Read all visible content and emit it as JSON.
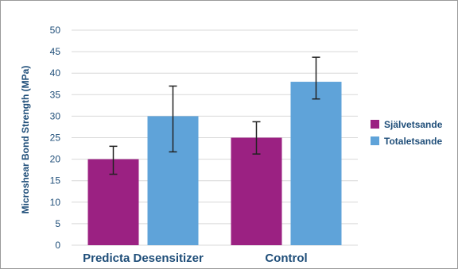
{
  "chart_data": {
    "type": "bar",
    "title": "",
    "xlabel": "",
    "ylabel": "Microshear Bond Strength (MPa)",
    "ylim": [
      0,
      50
    ],
    "yticks": [
      0,
      5,
      10,
      15,
      20,
      25,
      30,
      35,
      40,
      45,
      50
    ],
    "grid": true,
    "legend_position": "right",
    "categories": [
      "Predicta Desensitizer",
      "Control"
    ],
    "series": [
      {
        "name": "Självetsande",
        "color": "#9b2182",
        "values": [
          20,
          25
        ],
        "error_low": [
          16.5,
          21.2
        ],
        "error_high": [
          23,
          28.7
        ]
      },
      {
        "name": "Totaletsande",
        "color": "#5fa3d9",
        "values": [
          30,
          38
        ],
        "error_low": [
          21.7,
          34
        ],
        "error_high": [
          37,
          43.7
        ]
      }
    ],
    "colors": {
      "axis_text": "#1f4e79",
      "grid": "#d8d8d8",
      "error_bar": "#222222"
    }
  }
}
